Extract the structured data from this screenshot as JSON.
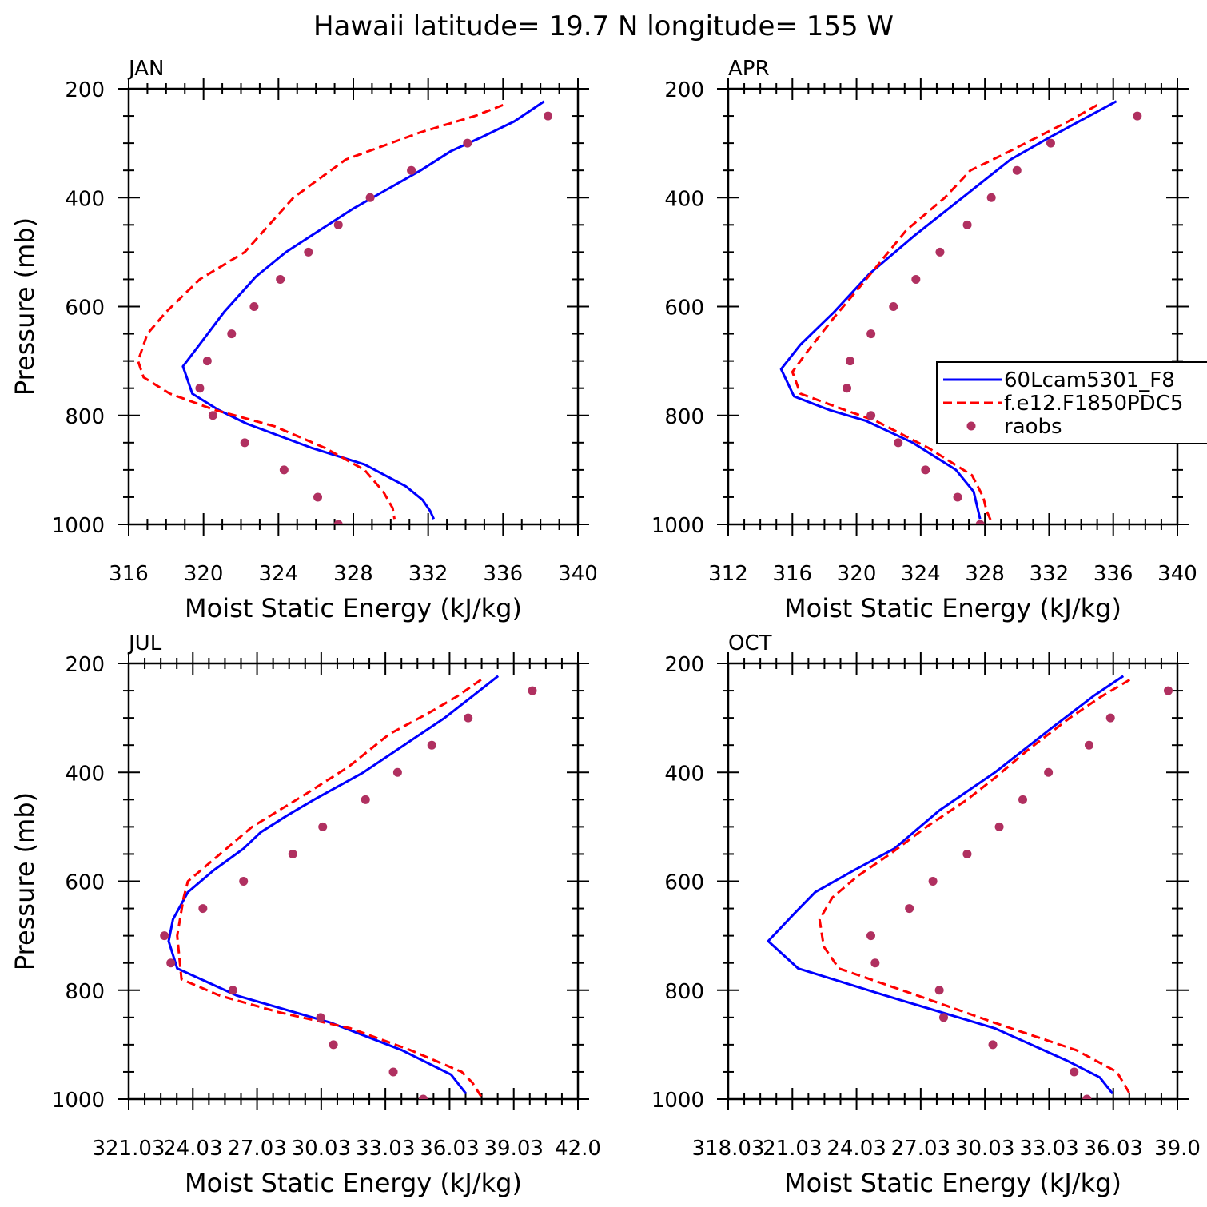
{
  "title": "Hawaii  latitude= 19.7 N longitude= 155 W",
  "colors": {
    "model1": "#0000ff",
    "model2": "#ff0000",
    "raobs": "#b03060",
    "axis": "#000000"
  },
  "legend": {
    "placement": "right edge of APR panel",
    "entries": [
      {
        "label": "60Lcam5301_F8",
        "style": "solid",
        "color": "#0000ff"
      },
      {
        "label": "f.e12.F1850PDC5",
        "style": "dashed",
        "color": "#ff0000"
      },
      {
        "label": "raobs",
        "style": "marker",
        "color": "#b03060"
      }
    ]
  },
  "chart_data": [
    {
      "type": "line",
      "panel": "JAN",
      "xlabel": "Moist Static Energy (kJ/kg)",
      "ylabel": "Pressure (mb)",
      "xlim": [
        316,
        340
      ],
      "ylim": [
        1000,
        200
      ],
      "xticks": [
        "316",
        "320",
        "324",
        "328",
        "332",
        "336",
        "340"
      ],
      "yticks": [
        "200",
        "400",
        "600",
        "800",
        "1000"
      ],
      "series": [
        {
          "key": "model1",
          "x": [
            338.2,
            336.6,
            334.8,
            333.2,
            331.6,
            329.8,
            328.0,
            326.2,
            324.4,
            322.8,
            321.1,
            320.0,
            318.9,
            319.4,
            320.8,
            322.3,
            325.8,
            328.6,
            330.8,
            331.7,
            332.1,
            332.3
          ],
          "y": [
            223,
            260,
            290,
            315,
            350,
            385,
            420,
            460,
            500,
            545,
            610,
            660,
            710,
            760,
            790,
            815,
            860,
            890,
            930,
            955,
            975,
            990
          ]
        },
        {
          "key": "model2",
          "x": [
            336.0,
            334.5,
            331.6,
            327.6,
            324.8,
            322.2,
            319.8,
            318.0,
            317.0,
            316.5,
            316.8,
            318.2,
            320.6,
            323.8,
            326.5,
            328.6,
            329.6,
            330.1,
            330.2
          ],
          "y": [
            230,
            250,
            280,
            330,
            400,
            500,
            550,
            610,
            650,
            700,
            730,
            760,
            790,
            820,
            860,
            900,
            940,
            970,
            990
          ]
        },
        {
          "key": "raobs",
          "x": [
            338.4,
            334.1,
            331.1,
            328.9,
            327.2,
            325.6,
            324.1,
            322.7,
            321.5,
            320.2,
            319.8,
            320.5,
            322.2,
            324.3,
            326.1,
            327.2
          ],
          "y": [
            250,
            300,
            350,
            400,
            450,
            500,
            550,
            600,
            650,
            700,
            750,
            800,
            850,
            900,
            950,
            1000
          ]
        }
      ]
    },
    {
      "type": "line",
      "panel": "APR",
      "xlabel": "Moist Static Energy (kJ/kg)",
      "ylabel": "",
      "xlim": [
        312,
        340
      ],
      "ylim": [
        1000,
        200
      ],
      "xticks": [
        "312",
        "316",
        "320",
        "324",
        "328",
        "332",
        "336",
        "340"
      ],
      "yticks": [
        "200",
        "400",
        "600",
        "800",
        "1000"
      ],
      "series": [
        {
          "key": "model1",
          "x": [
            336.2,
            334.5,
            332.0,
            329.6,
            326.6,
            323.6,
            320.8,
            318.6,
            316.5,
            315.3,
            316.1,
            318.3,
            320.6,
            323.5,
            326.2,
            327.3,
            327.7
          ],
          "y": [
            223,
            250,
            290,
            330,
            400,
            470,
            540,
            610,
            670,
            715,
            765,
            790,
            810,
            850,
            900,
            940,
            990
          ]
        },
        {
          "key": "model2",
          "x": [
            335.0,
            333.2,
            331.2,
            329.2,
            327.1,
            325.5,
            323.1,
            320.6,
            318.6,
            317.0,
            316.0,
            316.5,
            318.8,
            321.2,
            324.5,
            327.2,
            327.9,
            328.1,
            328.4
          ],
          "y": [
            230,
            260,
            290,
            320,
            350,
            400,
            460,
            550,
            620,
            680,
            720,
            760,
            785,
            810,
            860,
            910,
            950,
            975,
            995
          ]
        },
        {
          "key": "raobs",
          "x": [
            337.5,
            332.1,
            330.0,
            328.4,
            326.9,
            325.2,
            323.7,
            322.3,
            320.9,
            319.6,
            319.4,
            320.9,
            322.6,
            324.3,
            326.3,
            327.7
          ],
          "y": [
            250,
            300,
            350,
            400,
            450,
            500,
            550,
            600,
            650,
            700,
            750,
            800,
            850,
            900,
            950,
            1000
          ]
        }
      ]
    },
    {
      "type": "line",
      "panel": "JUL",
      "xlabel": "Moist Static Energy (kJ/kg)",
      "ylabel": "Pressure (mb)",
      "xlim": [
        321.03,
        342.03
      ],
      "ylim": [
        1000,
        200
      ],
      "xticks": [
        "321.03",
        "24.03",
        "27.03",
        "30.03",
        "33.03",
        "36.03",
        "39.03",
        "42.0"
      ],
      "yticks": [
        "200",
        "400",
        "600",
        "800",
        "1000"
      ],
      "series": [
        {
          "key": "model1",
          "x": [
            338.3,
            337.1,
            335.8,
            333.9,
            332.0,
            329.7,
            328.4,
            327.2,
            326.4,
            325.0,
            323.8,
            323.1,
            322.9,
            323.3,
            326.1,
            330.5,
            333.8,
            336.1,
            336.8
          ],
          "y": [
            223,
            260,
            300,
            350,
            400,
            450,
            480,
            510,
            540,
            580,
            620,
            670,
            710,
            760,
            810,
            860,
            910,
            955,
            990
          ]
        },
        {
          "key": "model2",
          "x": [
            337.5,
            336.4,
            335.1,
            333.2,
            331.3,
            329.3,
            326.8,
            325.0,
            323.8,
            323.6,
            323.3,
            323.5,
            325.3,
            328.0,
            331.4,
            334.2,
            336.6,
            337.1,
            337.5
          ],
          "y": [
            230,
            260,
            290,
            330,
            390,
            440,
            500,
            560,
            600,
            630,
            700,
            780,
            810,
            840,
            870,
            910,
            950,
            970,
            995
          ]
        },
        {
          "key": "raobs",
          "x": [
            339.9,
            336.9,
            335.2,
            333.6,
            332.1,
            330.1,
            328.7,
            326.4,
            324.5,
            322.7,
            323.0,
            325.9,
            330.0,
            330.6,
            333.4,
            334.8
          ],
          "y": [
            250,
            300,
            350,
            400,
            450,
            500,
            550,
            600,
            650,
            700,
            750,
            800,
            850,
            900,
            950,
            1000
          ]
        }
      ]
    },
    {
      "type": "line",
      "panel": "OCT",
      "xlabel": "Moist Static Energy (kJ/kg)",
      "ylabel": "",
      "xlim": [
        318.03,
        339.03
      ],
      "ylim": [
        1000,
        200
      ],
      "xticks": [
        "318.03",
        "21.03",
        "24.03",
        "27.03",
        "30.03",
        "33.03",
        "36.03",
        "39.0"
      ],
      "yticks": [
        "200",
        "400",
        "600",
        "800",
        "1000"
      ],
      "series": [
        {
          "key": "model1",
          "x": [
            336.5,
            335.1,
            333.1,
            330.5,
            327.9,
            325.8,
            323.9,
            322.1,
            321.1,
            319.9,
            321.3,
            325.4,
            330.5,
            333.9,
            335.4,
            336.0
          ],
          "y": [
            223,
            260,
            320,
            400,
            470,
            540,
            580,
            620,
            660,
            710,
            760,
            810,
            870,
            930,
            960,
            990
          ]
        },
        {
          "key": "model2",
          "x": [
            336.8,
            335.5,
            334.0,
            332.0,
            330.5,
            329.2,
            327.3,
            325.6,
            324.1,
            322.9,
            322.3,
            322.5,
            323.2,
            326.9,
            330.5,
            334.3,
            336.2,
            336.8
          ],
          "y": [
            230,
            260,
            300,
            360,
            410,
            450,
            500,
            550,
            590,
            630,
            670,
            720,
            760,
            810,
            860,
            910,
            950,
            990
          ]
        },
        {
          "key": "raobs",
          "x": [
            338.6,
            335.9,
            334.9,
            333.0,
            331.8,
            330.7,
            329.2,
            327.6,
            326.5,
            324.7,
            324.9,
            327.9,
            328.1,
            330.4,
            334.2,
            334.8
          ],
          "y": [
            250,
            300,
            350,
            400,
            450,
            500,
            550,
            600,
            650,
            700,
            750,
            800,
            850,
            900,
            950,
            1000
          ]
        }
      ]
    }
  ]
}
